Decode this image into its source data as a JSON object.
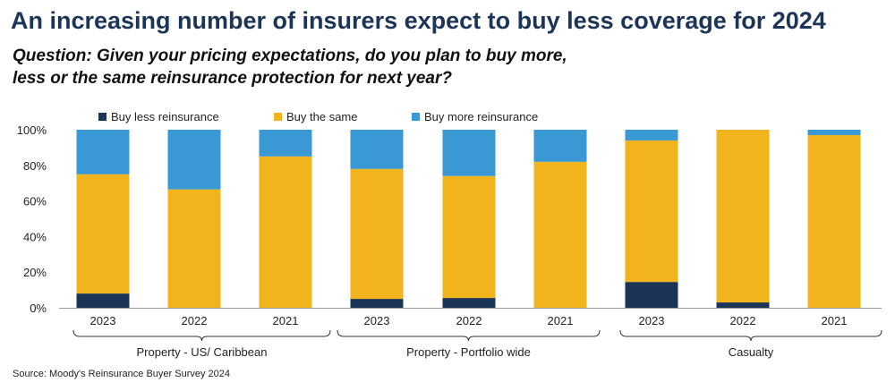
{
  "title": "An increasing number of insurers expect to buy less coverage for 2024",
  "subtitle_lines": [
    "Question: Given your pricing expectations, do you plan to buy more,",
    "less or the same reinsurance protection for next year?"
  ],
  "source": "Source: Moody's Reinsurance Buyer Survey 2024",
  "colors": {
    "less": "#1c3557",
    "same": "#f2b41c",
    "more": "#3a98d4",
    "axis": "#999999",
    "text": "#222222"
  },
  "chart_data": {
    "type": "bar",
    "stacked": true,
    "orientation": "vertical",
    "ylim": [
      0,
      100
    ],
    "yticks": [
      "0%",
      "20%",
      "40%",
      "60%",
      "80%",
      "100%"
    ],
    "legend_position": "top",
    "grid": false,
    "groups": [
      {
        "label": "Property - US/ Caribbean",
        "categories": [
          "2023",
          "2022",
          "2021"
        ]
      },
      {
        "label": "Property - Portfolio wide",
        "categories": [
          "2023",
          "2022",
          "2021"
        ]
      },
      {
        "label": "Casualty",
        "categories": [
          "2023",
          "2022",
          "2021"
        ]
      }
    ],
    "categories": [
      "2023",
      "2022",
      "2021",
      "2023",
      "2022",
      "2021",
      "2023",
      "2022",
      "2021"
    ],
    "series": [
      {
        "name": "Buy less reinsurance",
        "key": "less",
        "values": [
          8,
          0,
          0,
          5,
          5.5,
          0,
          14.5,
          3,
          0
        ]
      },
      {
        "name": "Buy the same",
        "key": "same",
        "values": [
          67,
          66.5,
          85,
          73,
          68.5,
          82,
          79.5,
          97,
          97
        ]
      },
      {
        "name": "Buy more reinsurance",
        "key": "more",
        "values": [
          25,
          33.5,
          15,
          22,
          26,
          18,
          6,
          0,
          3
        ]
      }
    ]
  }
}
